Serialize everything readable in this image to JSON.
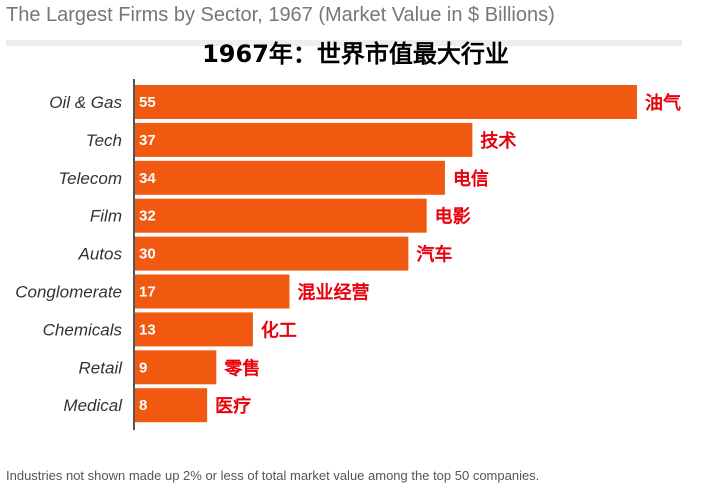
{
  "header": {
    "title": "The Largest Firms by Sector, 1967 (Market Value in $ Billions)",
    "subtitle": "1967年：世界市值最大行业"
  },
  "footnote": "Industries not shown made up 2% or less of total market value among the top 50 companies.",
  "colors": {
    "bar": "#f0590f",
    "annotation": "#e8000b",
    "axis": "#555555"
  },
  "chart_data": {
    "type": "bar",
    "orientation": "horizontal",
    "title": "The Largest Firms by Sector, 1967 (Market Value in $ Billions)",
    "categories": [
      "Oil & Gas",
      "Tech",
      "Telecom",
      "Film",
      "Autos",
      "Conglomerate",
      "Chemicals",
      "Retail",
      "Medical"
    ],
    "values": [
      55,
      37,
      34,
      32,
      30,
      17,
      13,
      9,
      8
    ],
    "annotations": [
      "油气",
      "技术",
      "电信",
      "电影",
      "汽车",
      "混业经营",
      "化工",
      "零售",
      "医疗"
    ],
    "xlim": [
      0,
      55
    ],
    "grid": false,
    "legend": "none"
  }
}
